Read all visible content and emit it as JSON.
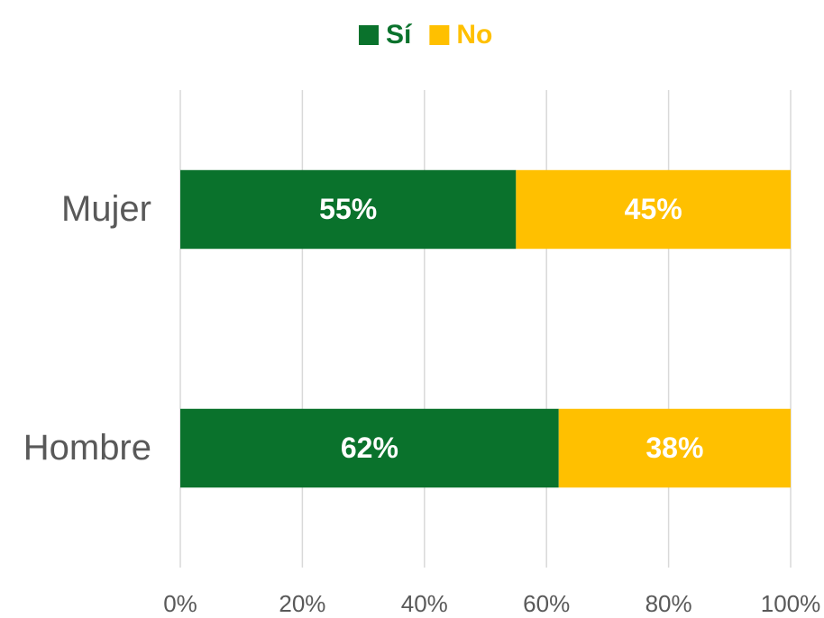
{
  "chart_data": {
    "type": "bar",
    "orientation": "horizontal",
    "stacked": true,
    "categories": [
      "Mujer",
      "Hombre"
    ],
    "series": [
      {
        "name": "Sí",
        "color": "#0a722c",
        "values": [
          55,
          62
        ],
        "value_labels": [
          "55%",
          "62%"
        ]
      },
      {
        "name": "No",
        "color": "#ffc000",
        "values": [
          45,
          38
        ],
        "value_labels": [
          "45%",
          "38%"
        ]
      }
    ],
    "xlim": [
      0,
      100
    ],
    "xticks": [
      {
        "value": 0,
        "label": "0%"
      },
      {
        "value": 20,
        "label": "20%"
      },
      {
        "value": 40,
        "label": "40%"
      },
      {
        "value": 60,
        "label": "60%"
      },
      {
        "value": 80,
        "label": "80%"
      },
      {
        "value": 100,
        "label": "100%"
      }
    ],
    "grid": true,
    "legend": "top"
  }
}
